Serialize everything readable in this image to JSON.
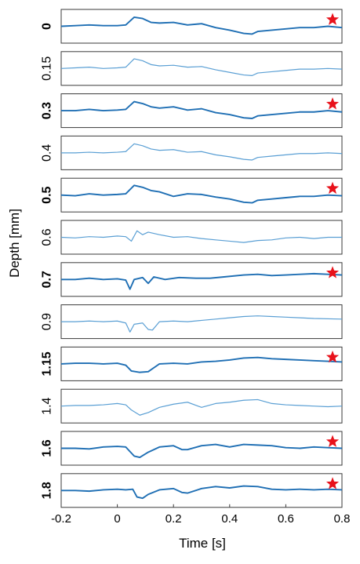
{
  "chart_data": {
    "type": "line",
    "xlabel": "Time [s]",
    "ylabel": "Depth [mm]",
    "xlim": [
      -0.2,
      0.8
    ],
    "x_ticks": [
      "-0.2",
      "0",
      "0.2",
      "0.4",
      "0.6",
      "0.8"
    ],
    "x_tick_values": [
      -0.2,
      0,
      0.2,
      0.4,
      0.6,
      0.8
    ],
    "line_colors": {
      "bold": "#1f6fb4",
      "light": "#5a9fd4"
    },
    "star_color": "#e8121b",
    "panels": [
      {
        "depth": "0",
        "bold": true,
        "star": true,
        "ylim": [
          -1,
          1
        ],
        "x": [
          -0.2,
          -0.15,
          -0.1,
          -0.05,
          0,
          0.03,
          0.06,
          0.09,
          0.12,
          0.15,
          0.2,
          0.25,
          0.3,
          0.35,
          0.4,
          0.45,
          0.48,
          0.5,
          0.55,
          0.6,
          0.65,
          0.7,
          0.75,
          0.8
        ],
        "y": [
          0,
          0.05,
          0.1,
          0.05,
          0.05,
          0.1,
          0.7,
          0.6,
          0.3,
          0.25,
          0.3,
          0.1,
          0.2,
          -0.1,
          -0.3,
          -0.55,
          -0.6,
          -0.4,
          -0.3,
          -0.2,
          -0.1,
          -0.1,
          0,
          -0.1
        ]
      },
      {
        "depth": "0.15",
        "bold": false,
        "star": false,
        "ylim": [
          -1,
          1
        ],
        "x": [
          -0.2,
          -0.15,
          -0.1,
          -0.05,
          0,
          0.03,
          0.06,
          0.09,
          0.12,
          0.15,
          0.2,
          0.25,
          0.3,
          0.35,
          0.4,
          0.45,
          0.48,
          0.5,
          0.55,
          0.6,
          0.65,
          0.7,
          0.75,
          0.8
        ],
        "y": [
          0,
          0.05,
          0.1,
          0,
          0.05,
          0.1,
          0.75,
          0.6,
          0.3,
          0.2,
          0.25,
          0.1,
          0.15,
          -0.1,
          -0.3,
          -0.5,
          -0.55,
          -0.35,
          -0.25,
          -0.15,
          -0.05,
          -0.05,
          0,
          -0.05
        ]
      },
      {
        "depth": "0.3",
        "bold": true,
        "star": true,
        "ylim": [
          -1,
          1
        ],
        "x": [
          -0.2,
          -0.15,
          -0.1,
          -0.05,
          0,
          0.03,
          0.06,
          0.09,
          0.12,
          0.15,
          0.2,
          0.25,
          0.3,
          0.35,
          0.4,
          0.45,
          0.48,
          0.5,
          0.55,
          0.6,
          0.65,
          0.7,
          0.75,
          0.8
        ],
        "y": [
          0,
          0,
          0.1,
          0,
          0.05,
          0.1,
          0.7,
          0.55,
          0.3,
          0.2,
          0.3,
          0.05,
          0.15,
          -0.15,
          -0.3,
          -0.55,
          -0.6,
          -0.4,
          -0.3,
          -0.2,
          -0.1,
          -0.1,
          0,
          -0.1
        ]
      },
      {
        "depth": "0.4",
        "bold": false,
        "star": false,
        "ylim": [
          -1,
          1
        ],
        "x": [
          -0.2,
          -0.15,
          -0.1,
          -0.05,
          0,
          0.03,
          0.06,
          0.09,
          0.12,
          0.15,
          0.2,
          0.25,
          0.3,
          0.35,
          0.4,
          0.45,
          0.48,
          0.5,
          0.55,
          0.6,
          0.65,
          0.7,
          0.75,
          0.8
        ],
        "y": [
          0,
          0,
          0.05,
          0,
          0.05,
          0.1,
          0.7,
          0.55,
          0.3,
          0.2,
          0.25,
          0.05,
          0.1,
          -0.15,
          -0.3,
          -0.5,
          -0.55,
          -0.35,
          -0.25,
          -0.15,
          -0.05,
          -0.05,
          0,
          -0.05
        ]
      },
      {
        "depth": "0.5",
        "bold": true,
        "star": true,
        "ylim": [
          -1,
          1
        ],
        "x": [
          -0.2,
          -0.15,
          -0.1,
          -0.05,
          0,
          0.03,
          0.06,
          0.09,
          0.12,
          0.15,
          0.2,
          0.25,
          0.3,
          0.35,
          0.4,
          0.45,
          0.48,
          0.5,
          0.55,
          0.6,
          0.65,
          0.7,
          0.75,
          0.8
        ],
        "y": [
          0,
          -0.05,
          0.1,
          0,
          0.05,
          0.1,
          0.75,
          0.6,
          0.35,
          0.25,
          -0.1,
          0.1,
          0.05,
          -0.15,
          -0.3,
          -0.55,
          -0.6,
          -0.4,
          -0.3,
          -0.2,
          -0.1,
          -0.1,
          0,
          -0.05
        ]
      },
      {
        "depth": "0.6",
        "bold": false,
        "star": false,
        "ylim": [
          -1,
          1
        ],
        "x": [
          -0.2,
          -0.15,
          -0.1,
          -0.05,
          0,
          0.03,
          0.05,
          0.07,
          0.09,
          0.11,
          0.15,
          0.2,
          0.25,
          0.3,
          0.35,
          0.4,
          0.45,
          0.5,
          0.55,
          0.6,
          0.65,
          0.7,
          0.75,
          0.8
        ],
        "y": [
          0,
          -0.05,
          0.05,
          0,
          0.1,
          0.05,
          -0.3,
          0.5,
          0.2,
          0.4,
          0.2,
          0,
          0.05,
          -0.1,
          -0.2,
          -0.3,
          -0.4,
          -0.25,
          -0.2,
          -0.05,
          0,
          -0.1,
          0,
          0
        ]
      },
      {
        "depth": "0.7",
        "bold": true,
        "star": true,
        "ylim": [
          -1,
          1
        ],
        "x": [
          -0.2,
          -0.15,
          -0.1,
          -0.05,
          0,
          0.03,
          0.045,
          0.06,
          0.09,
          0.11,
          0.13,
          0.17,
          0.22,
          0.28,
          0.33,
          0.38,
          0.45,
          0.5,
          0.55,
          0.6,
          0.65,
          0.7,
          0.75,
          0.8
        ],
        "y": [
          0,
          0,
          0.1,
          0,
          0.05,
          -0.05,
          -0.75,
          0,
          0.15,
          -0.3,
          0.2,
          0,
          0.15,
          0.1,
          0.1,
          0.2,
          0.35,
          0.4,
          0.3,
          0.35,
          0.4,
          0.45,
          0.4,
          0.35
        ]
      },
      {
        "depth": "0.9",
        "bold": false,
        "star": false,
        "ylim": [
          -1,
          1
        ],
        "x": [
          -0.2,
          -0.15,
          -0.1,
          -0.05,
          0,
          0.03,
          0.045,
          0.06,
          0.09,
          0.11,
          0.125,
          0.15,
          0.2,
          0.25,
          0.3,
          0.35,
          0.4,
          0.45,
          0.5,
          0.55,
          0.6,
          0.65,
          0.7,
          0.8
        ],
        "y": [
          0,
          0,
          0.05,
          0,
          0.05,
          -0.1,
          -0.8,
          -0.2,
          -0.1,
          -0.6,
          -0.65,
          0,
          0.05,
          0,
          0.1,
          0.2,
          0.3,
          0.4,
          0.45,
          0.4,
          0.35,
          0.3,
          0.25,
          0.2
        ]
      },
      {
        "depth": "1.15",
        "bold": true,
        "star": true,
        "ylim": [
          -1,
          1
        ],
        "x": [
          -0.2,
          -0.15,
          -0.1,
          -0.05,
          0,
          0.03,
          0.05,
          0.08,
          0.11,
          0.15,
          0.2,
          0.25,
          0.3,
          0.35,
          0.4,
          0.45,
          0.5,
          0.55,
          0.6,
          0.65,
          0.7,
          0.75,
          0.8
        ],
        "y": [
          0,
          0.05,
          0.05,
          0,
          0.05,
          -0.1,
          -0.55,
          -0.65,
          -0.6,
          0,
          0.05,
          0,
          0.15,
          0.2,
          0.3,
          0.45,
          0.5,
          0.4,
          0.35,
          0.3,
          0.25,
          0.2,
          0.15
        ]
      },
      {
        "depth": "1.4",
        "bold": false,
        "star": false,
        "ylim": [
          -1,
          1
        ],
        "x": [
          -0.2,
          -0.15,
          -0.1,
          -0.05,
          0,
          0.03,
          0.05,
          0.08,
          0.11,
          0.15,
          0.2,
          0.25,
          0.3,
          0.35,
          0.4,
          0.45,
          0.5,
          0.55,
          0.6,
          0.65,
          0.7,
          0.75,
          0.8
        ],
        "y": [
          0,
          0.05,
          0.05,
          0.1,
          0.2,
          0.1,
          -0.3,
          -0.7,
          -0.5,
          -0.1,
          0.15,
          0.3,
          -0.1,
          0.2,
          0.3,
          0.45,
          0.5,
          0.2,
          0.1,
          0.05,
          0,
          -0.05,
          0
        ]
      },
      {
        "depth": "1.6",
        "bold": true,
        "star": true,
        "ylim": [
          -1,
          1
        ],
        "x": [
          -0.2,
          -0.15,
          -0.1,
          -0.05,
          0,
          0.03,
          0.06,
          0.08,
          0.11,
          0.15,
          0.2,
          0.23,
          0.25,
          0.3,
          0.35,
          0.4,
          0.45,
          0.5,
          0.55,
          0.6,
          0.65,
          0.7,
          0.75,
          0.8
        ],
        "y": [
          0,
          0,
          -0.05,
          0.1,
          0.15,
          0.1,
          -0.6,
          -0.7,
          -0.3,
          0.1,
          0.2,
          -0.1,
          -0.1,
          0.2,
          0.3,
          0.1,
          0.3,
          0.25,
          0.2,
          0.05,
          0,
          0.1,
          0.05,
          0
        ]
      },
      {
        "depth": "1.8",
        "bold": true,
        "star": true,
        "ylim": [
          -1,
          1
        ],
        "x": [
          -0.2,
          -0.15,
          -0.1,
          -0.05,
          0,
          0.03,
          0.055,
          0.07,
          0.09,
          0.11,
          0.15,
          0.2,
          0.23,
          0.25,
          0.3,
          0.35,
          0.4,
          0.45,
          0.5,
          0.55,
          0.6,
          0.65,
          0.7,
          0.75,
          0.8
        ],
        "y": [
          0,
          0,
          -0.05,
          0.05,
          0.1,
          0.05,
          0.1,
          -0.5,
          -0.6,
          -0.3,
          0.05,
          0.15,
          -0.15,
          -0.2,
          0.15,
          0.3,
          0.2,
          0.35,
          0.3,
          0.1,
          0.05,
          0.1,
          0.05,
          0.1,
          0.05
        ]
      }
    ]
  }
}
